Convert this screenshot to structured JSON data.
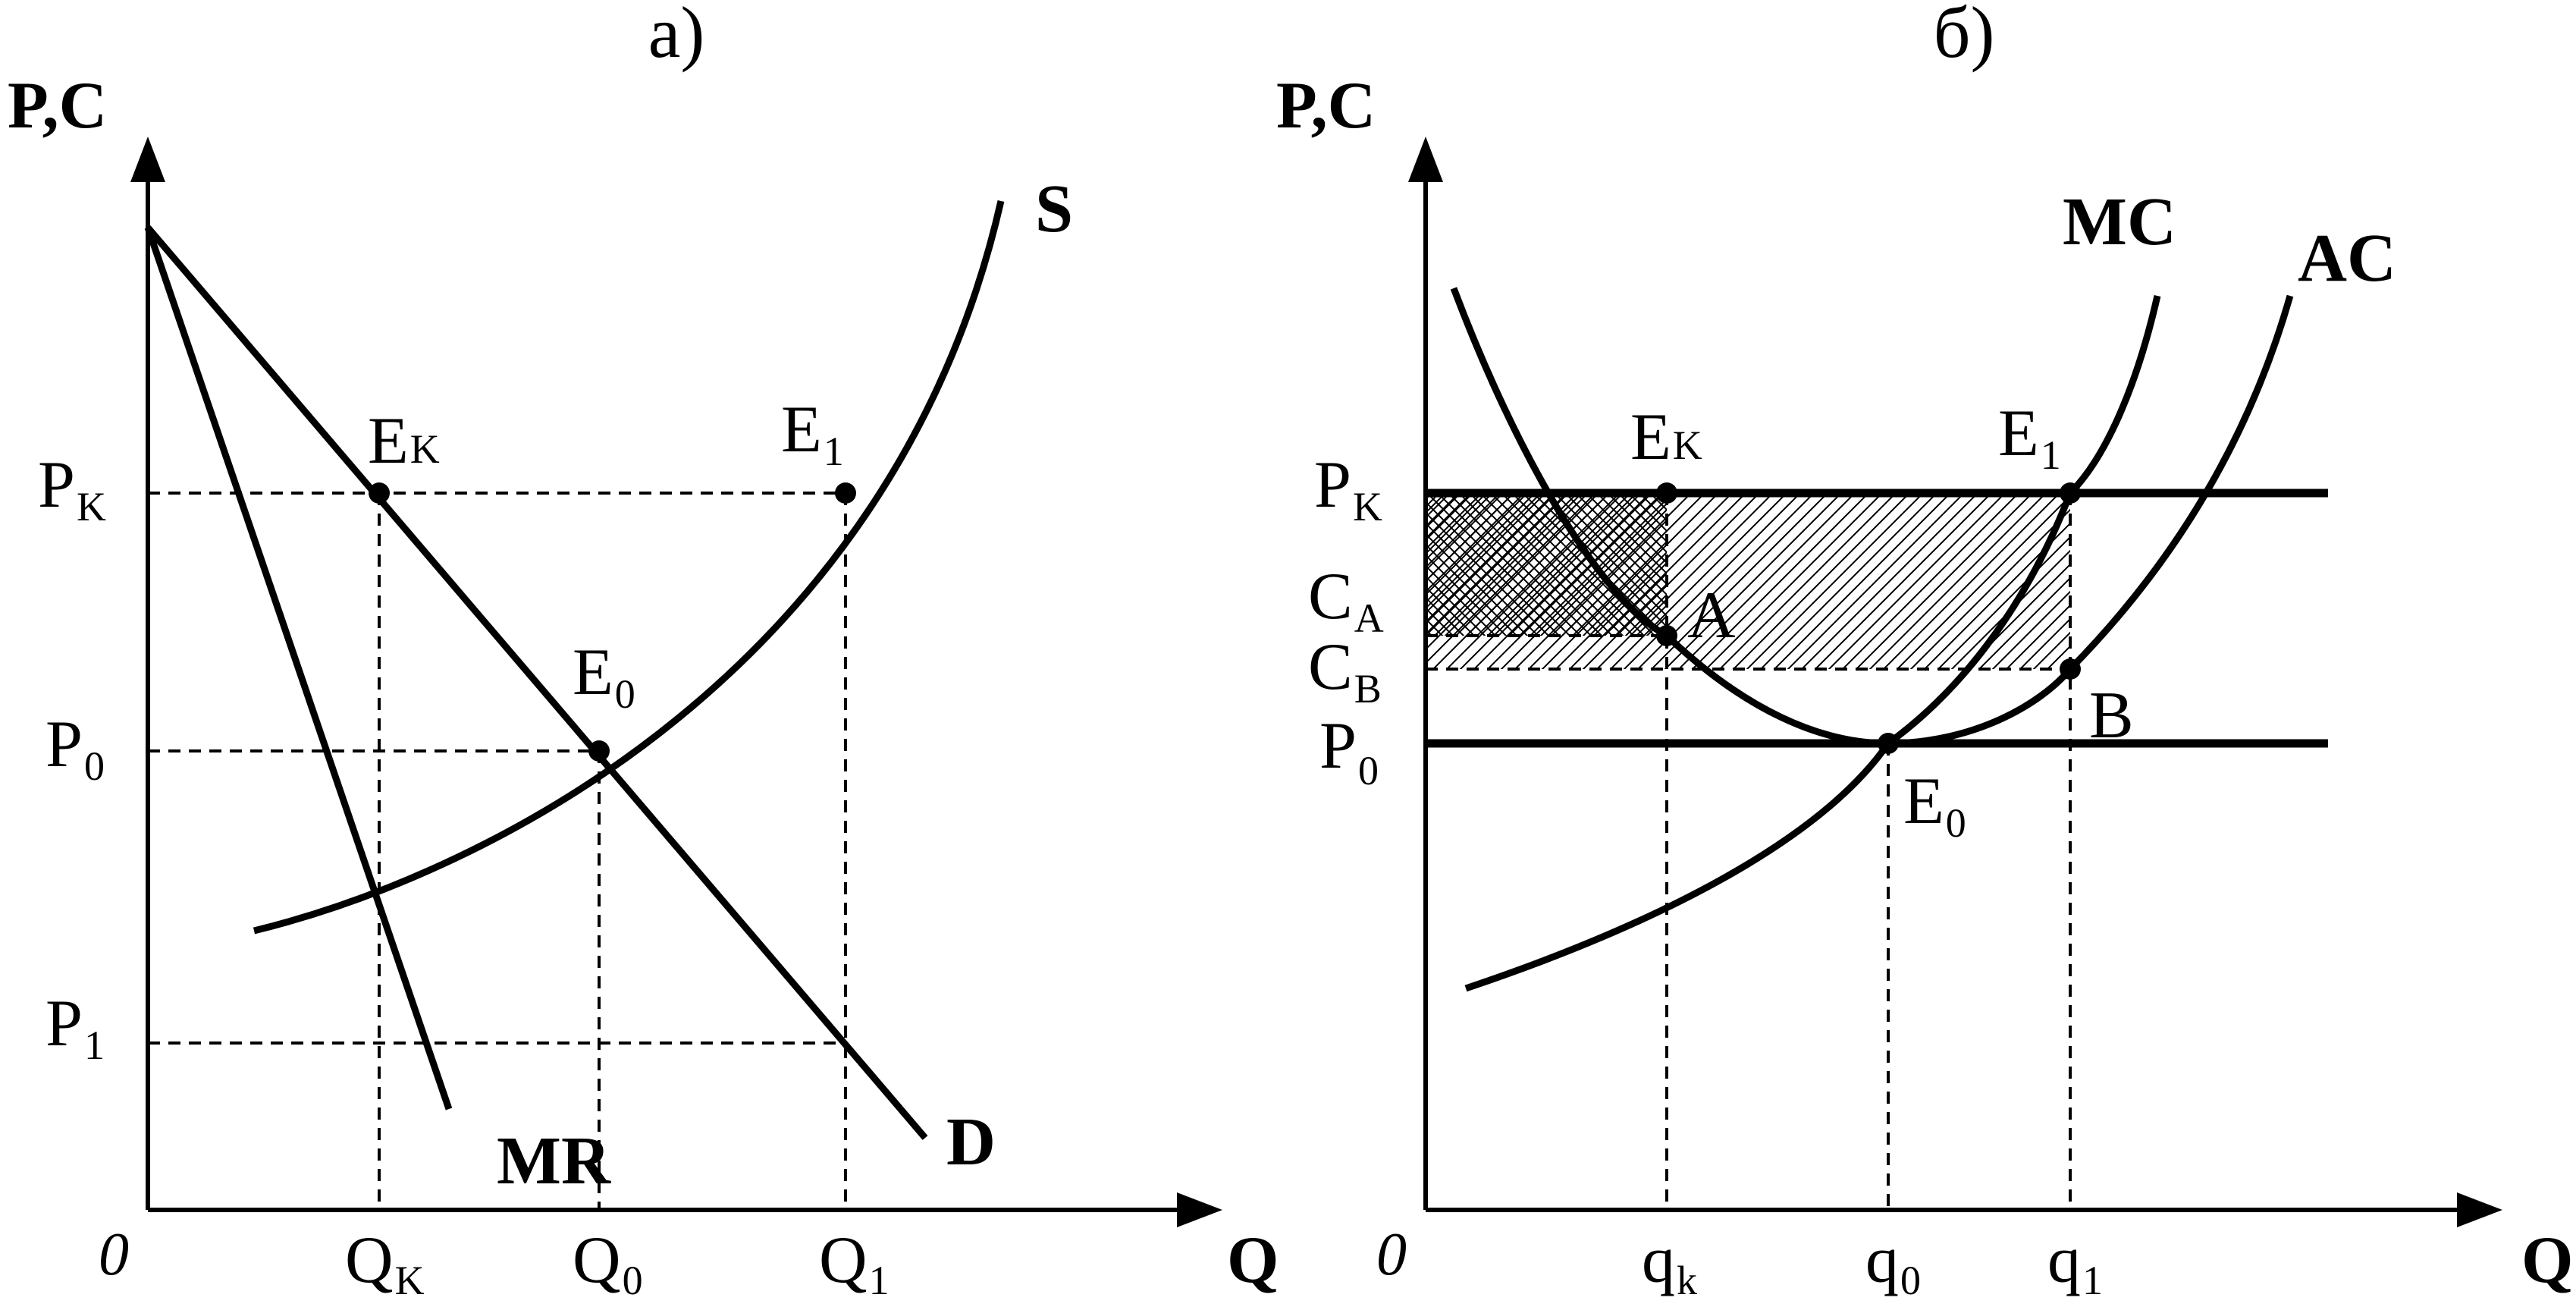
{
  "panels": {
    "a": {
      "title": "а)",
      "origin": "0",
      "y_axis_label": "P,C",
      "x_axis_label": "Q",
      "curves": {
        "supply": "S",
        "demand": "D",
        "marginal_revenue": "MR"
      },
      "price_labels": {
        "pk": {
          "main": "P",
          "sub": "K"
        },
        "p0": {
          "main": "P",
          "sub": "0"
        },
        "p1": {
          "main": "P",
          "sub": "1"
        }
      },
      "quantity_labels": {
        "qk": {
          "main": "Q",
          "sub": "K"
        },
        "q0": {
          "main": "Q",
          "sub": "0"
        },
        "q1": {
          "main": "Q",
          "sub": "1"
        }
      },
      "points": {
        "ek": {
          "main": "E",
          "sub": "K"
        },
        "e0": {
          "main": "E",
          "sub": "0"
        },
        "e1": {
          "main": "E",
          "sub": "1"
        }
      }
    },
    "b": {
      "title": "б)",
      "origin": "0",
      "y_axis_label": "P,C",
      "x_axis_label": "Q",
      "curves": {
        "marginal_cost": "MC",
        "average_cost": "AC"
      },
      "price_labels": {
        "pk": {
          "main": "P",
          "sub": "K"
        },
        "ca": {
          "main": "C",
          "sub": "A"
        },
        "cb": {
          "main": "C",
          "sub": "B"
        },
        "p0": {
          "main": "P",
          "sub": "0"
        }
      },
      "quantity_labels": {
        "qk": {
          "main": "q",
          "sub": "k"
        },
        "q0": {
          "main": "q",
          "sub": "0"
        },
        "q1": {
          "main": "q",
          "sub": "1"
        }
      },
      "points": {
        "ek": {
          "main": "E",
          "sub": "K"
        },
        "e1": {
          "main": "E",
          "sub": "1"
        },
        "a": "A",
        "b": "B",
        "e0": {
          "main": "E",
          "sub": "0"
        }
      }
    }
  }
}
